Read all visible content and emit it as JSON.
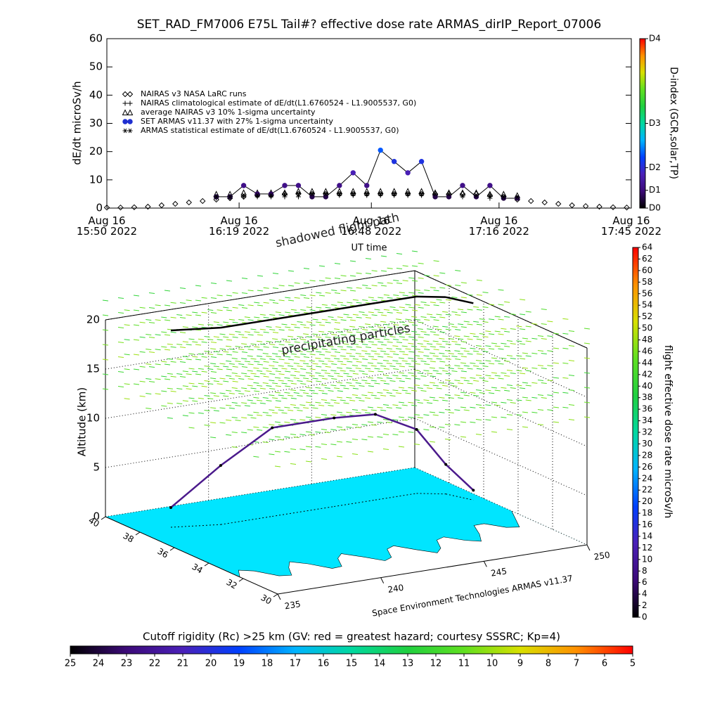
{
  "chart_data": [
    {
      "type": "line",
      "title": "SET_RAD_FM7006  E75L Tail#? effective dose rate ARMAS_dirIP_Report_07006",
      "x_label": "UT time",
      "y_label": "dE/dt microSv/h",
      "y2_label": "D-index (GCR,solar,TP)",
      "x": [
        "2022-08-16 15:50",
        "2022-08-16 15:53",
        "2022-08-16 15:56",
        "2022-08-16 15:59",
        "2022-08-16 16:02",
        "2022-08-16 16:05",
        "2022-08-16 16:08",
        "2022-08-16 16:11",
        "2022-08-16 16:14",
        "2022-08-16 16:17",
        "2022-08-16 16:20",
        "2022-08-16 16:23",
        "2022-08-16 16:26",
        "2022-08-16 16:29",
        "2022-08-16 16:32",
        "2022-08-16 16:35",
        "2022-08-16 16:38",
        "2022-08-16 16:41",
        "2022-08-16 16:44",
        "2022-08-16 16:47",
        "2022-08-16 16:50",
        "2022-08-16 16:53",
        "2022-08-16 16:56",
        "2022-08-16 16:59",
        "2022-08-16 17:02",
        "2022-08-16 17:05",
        "2022-08-16 17:08",
        "2022-08-16 17:11",
        "2022-08-16 17:14",
        "2022-08-16 17:17",
        "2022-08-16 17:20",
        "2022-08-16 17:23",
        "2022-08-16 17:26",
        "2022-08-16 17:29",
        "2022-08-16 17:32",
        "2022-08-16 17:35",
        "2022-08-16 17:38",
        "2022-08-16 17:41",
        "2022-08-16 17:44"
      ],
      "xlim": [
        "2022-08-16 15:50",
        "2022-08-16 17:45"
      ],
      "xticks": [
        {
          "value": "2022-08-16 15:50",
          "label": "Aug 16\n15:50 2022"
        },
        {
          "value": "2022-08-16 16:19",
          "label": "Aug 16\n16:19 2022"
        },
        {
          "value": "2022-08-16 16:48",
          "label": "Aug 16\n16:48 2022"
        },
        {
          "value": "2022-08-16 17:16",
          "label": "Aug 16\n17:16 2022"
        },
        {
          "value": "2022-08-16 17:45",
          "label": "Aug 16\n17:45 2022"
        }
      ],
      "ylim": [
        0,
        60
      ],
      "yticks": [
        0,
        10,
        20,
        30,
        40,
        50,
        60
      ],
      "y2lim": [
        0,
        60
      ],
      "y2ticks": [
        {
          "value": 0,
          "label": "D0"
        },
        {
          "value": 6.3,
          "label": "D1"
        },
        {
          "value": 14.3,
          "label": "D2"
        },
        {
          "value": 30,
          "label": "D3"
        },
        {
          "value": 60,
          "label": "D4"
        }
      ],
      "series": [
        {
          "name": "NAIRAS v3 NASA LaRC runs",
          "marker": "diamond",
          "color": "#000000",
          "values": [
            0.2,
            0.2,
            0.3,
            0.5,
            1,
            1.5,
            2,
            2.5,
            3,
            3.5,
            4,
            4.5,
            4.5,
            5,
            5,
            5,
            5,
            5,
            5,
            5,
            5,
            5,
            5,
            5,
            5,
            5,
            5,
            5,
            4.5,
            4,
            3,
            2.5,
            2,
            1.5,
            1,
            0.7,
            0.5,
            0.3,
            0.2
          ]
        },
        {
          "name": "NAIRAS climatological estimate of dE/dt(L1.6760524 - L1.9005537, G0)",
          "marker": "plus",
          "color": "#000000",
          "values": [
            null,
            null,
            null,
            null,
            null,
            null,
            null,
            null,
            3.5,
            3.5,
            4,
            4,
            4,
            4,
            4,
            4.5,
            4.5,
            4.5,
            4.5,
            4.5,
            4.5,
            4.5,
            4.5,
            4.5,
            4.5,
            4,
            4,
            4,
            3.5,
            3.5,
            3.5,
            null,
            null,
            null,
            null,
            null,
            null,
            null,
            null
          ]
        },
        {
          "name": "average NAIRAS v3 10% 1-sigma uncertainty",
          "marker": "triangle",
          "color": "#000000",
          "values": [
            null,
            null,
            null,
            null,
            null,
            null,
            null,
            null,
            5,
            5,
            5.5,
            5.5,
            5.5,
            5.5,
            6,
            6,
            6,
            6,
            6,
            6,
            6,
            6,
            6,
            6,
            5.5,
            5.5,
            5.5,
            5.5,
            5,
            5,
            4.5,
            null,
            null,
            null,
            null,
            null,
            null,
            null,
            null
          ]
        },
        {
          "name": "SET ARMAS v11.37 with 27% 1-sigma uncertainty",
          "marker": "circle",
          "color": "#1f2fd0",
          "fill_by_colormap": true,
          "line": true,
          "line_color": "#000000",
          "values": [
            null,
            null,
            null,
            null,
            null,
            null,
            null,
            null,
            4,
            4,
            8,
            5,
            5,
            8,
            8,
            4,
            4,
            8,
            12.5,
            8,
            20.5,
            16.5,
            12.5,
            16.5,
            4,
            4,
            8,
            4,
            8,
            3.5,
            3.5,
            null,
            null,
            null,
            null,
            null,
            null,
            null,
            null
          ]
        },
        {
          "name": "ARMAS statistical estimate of dE/dt(L1.6760524 - L1.9005537, G0)",
          "marker": "star",
          "color": "#000000",
          "values": [
            null,
            null,
            null,
            null,
            null,
            null,
            null,
            null,
            4,
            4,
            4.5,
            4.5,
            4.5,
            5,
            5,
            5,
            5,
            5,
            5,
            5,
            5,
            5,
            5,
            5,
            5,
            5,
            4.5,
            4.5,
            4.5,
            4,
            4,
            null,
            null,
            null,
            null,
            null,
            null,
            null,
            null
          ]
        }
      ]
    },
    {
      "type": "3d-path",
      "annotations": [
        "shadowed flight path",
        "precipitating particles"
      ],
      "credit": "Space Environment Technologies ARMAS v11.37",
      "z_label": "Altitude (km)",
      "xlim": [
        235,
        250
      ],
      "xticks": [
        235,
        240,
        245,
        250
      ],
      "ylim": [
        30,
        40
      ],
      "yticks": [
        30,
        32,
        34,
        36,
        38,
        40
      ],
      "zlim": [
        0,
        20
      ],
      "zticks": [
        0,
        5,
        10,
        15,
        20
      ],
      "color": "#4b1a8c",
      "map_color": "#00e5ff",
      "lon": [
        236.5,
        238.5,
        241,
        244,
        246,
        248,
        249,
        249.5
      ],
      "lat": [
        38,
        37.5,
        37.5,
        37.5,
        37.5,
        37.5,
        37,
        36
      ],
      "alt": [
        2,
        6,
        9,
        9,
        8.7,
        6.5,
        3,
        1
      ]
    },
    {
      "type": "colorbar",
      "title": "flight effective dose rate microSv/h",
      "ylim": [
        0,
        64
      ],
      "yticks": [
        0,
        2,
        4,
        6,
        8,
        10,
        12,
        14,
        16,
        18,
        20,
        22,
        24,
        26,
        28,
        30,
        32,
        34,
        36,
        38,
        40,
        42,
        44,
        46,
        48,
        50,
        52,
        54,
        56,
        58,
        60,
        62,
        64
      ],
      "colormap": [
        "#000000",
        "#3c0a78",
        "#4a20b8",
        "#0040ff",
        "#00b4ff",
        "#00d8a0",
        "#20d040",
        "#60e020",
        "#d8e000",
        "#ff9000",
        "#ff0000"
      ]
    },
    {
      "type": "colorbar",
      "title": "Cutoff rigidity (Rc) >25 km (GV: red = greatest hazard; courtesy SSSRC; Kp=4)",
      "xlim": [
        25,
        5
      ],
      "xticks": [
        25,
        24,
        23,
        22,
        21,
        20,
        19,
        18,
        17,
        16,
        15,
        14,
        13,
        12,
        11,
        10,
        9,
        8,
        7,
        6,
        5
      ]
    }
  ]
}
